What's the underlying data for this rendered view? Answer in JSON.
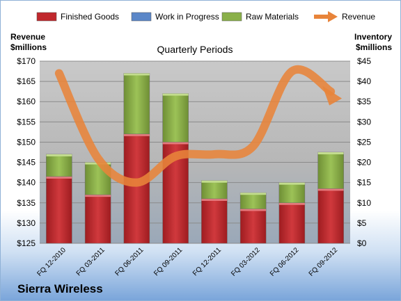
{
  "chart_data": {
    "type": "bar",
    "subtitle": "Quarterly Periods",
    "company": "Sierra Wireless",
    "categories": [
      "FQ 12-2010",
      "FQ 03-2011",
      "FQ 06-2011",
      "FQ 09-2011",
      "FQ 12-2011",
      "FQ 03-2012",
      "FQ 06-2012",
      "FQ 09-2012"
    ],
    "stacked": true,
    "series": [
      {
        "name": "Finished Goods",
        "axis": "right",
        "color": "#c0282d",
        "values": [
          16.5,
          12,
          27,
          25,
          11,
          8.5,
          10,
          13.5
        ]
      },
      {
        "name": "Work in Progress",
        "axis": "right",
        "color": "#5b87c8",
        "values": [
          0,
          0,
          0,
          0,
          0,
          0,
          0,
          0
        ]
      },
      {
        "name": "Raw Materials",
        "axis": "right",
        "color": "#8ab04a",
        "values": [
          5.5,
          8,
          15,
          12,
          4.5,
          4,
          5,
          9
        ]
      },
      {
        "name": "Revenue",
        "axis": "left",
        "color": "#e8843a",
        "type": "line",
        "values": [
          167,
          146,
          140,
          146.5,
          147,
          149,
          167.5,
          162.5
        ]
      }
    ],
    "y_left": {
      "label_line1": "Revenue",
      "label_line2": "$millions",
      "range": [
        125,
        170
      ],
      "ticks": [
        "$125",
        "$130",
        "$135",
        "$140",
        "$145",
        "$150",
        "$155",
        "$160",
        "$165",
        "$170"
      ]
    },
    "y_right": {
      "label_line1": "Inventory",
      "label_line2": "$millions",
      "range": [
        0,
        45
      ],
      "ticks": [
        "$0",
        "$5",
        "$10",
        "$15",
        "$20",
        "$25",
        "$30",
        "$35",
        "$40",
        "$45"
      ]
    },
    "grid": true,
    "legend_position": "top"
  }
}
